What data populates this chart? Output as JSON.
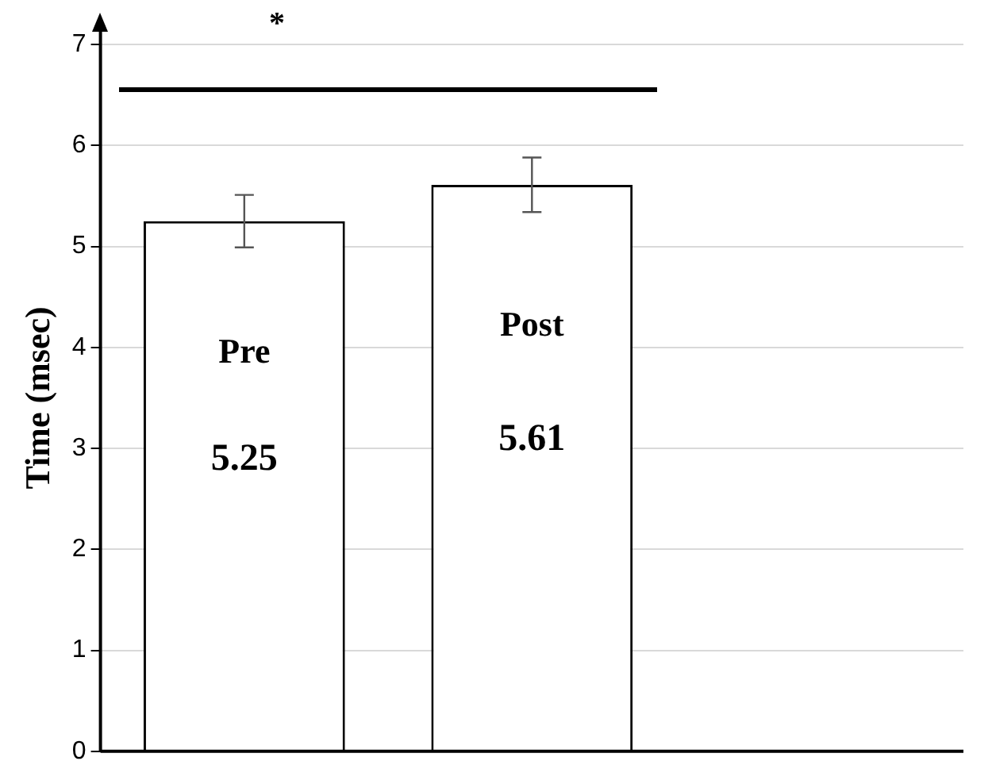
{
  "chart_data": {
    "type": "bar",
    "ylabel": "Time (msec)",
    "categories": [
      "Pre",
      "Post",
      null
    ],
    "values": [
      5.25,
      5.61,
      null
    ],
    "errors": [
      0.26,
      0.27,
      null
    ],
    "color": "#ffffff",
    "ylim": [
      0,
      7
    ],
    "yticks": [
      0,
      1,
      2,
      3,
      4,
      5,
      6,
      7
    ],
    "grid": "y",
    "data_labels": true,
    "legend": false,
    "annotations": [
      "*"
    ]
  }
}
